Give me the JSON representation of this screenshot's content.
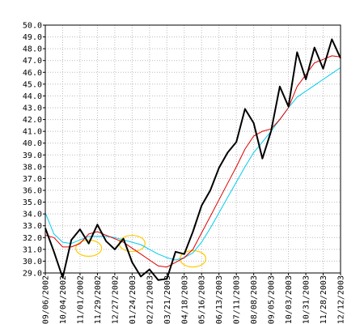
{
  "chart_data": {
    "type": "line",
    "title": "",
    "xlabel": "",
    "ylabel": "",
    "ylim": [
      29.0,
      50.0
    ],
    "y_ticks": [
      "29.0",
      "30.0",
      "31.0",
      "32.0",
      "33.0",
      "34.0",
      "35.0",
      "36.0",
      "37.0",
      "38.0",
      "39.0",
      "40.0",
      "41.0",
      "42.0",
      "43.0",
      "44.0",
      "45.0",
      "46.0",
      "47.0",
      "48.0",
      "49.0",
      "50.0"
    ],
    "x_ticks": [
      "09/06/2002",
      "10/04/2002",
      "11/01/2002",
      "11/29/2002",
      "12/27/2002",
      "01/24/2003",
      "02/21/2003",
      "03/21/2003",
      "04/18/2003",
      "05/16/2003",
      "06/13/2003",
      "07/11/2003",
      "08/08/2003",
      "09/05/2003",
      "10/03/2003",
      "10/31/2003",
      "11/28/2003",
      "12/12/2003"
    ],
    "grid": true,
    "legend": "none",
    "series": [
      {
        "color": "#000000",
        "values": [
          32.8,
          30.8,
          28.6,
          31.8,
          32.7,
          31.5,
          33.1,
          31.7,
          31.0,
          31.9,
          29.9,
          28.7,
          29.3,
          28.4,
          28.5,
          30.8,
          30.6,
          32.5,
          34.7,
          36.0,
          37.9,
          39.2,
          40.1,
          42.9,
          41.7,
          38.7,
          41.0,
          44.8,
          43.1,
          47.7,
          45.4,
          48.1,
          46.3,
          48.8,
          47.2
        ]
      },
      {
        "color": "#dd0000",
        "values": [
          32.2,
          32.0,
          31.2,
          31.2,
          31.5,
          32.3,
          32.5,
          32.2,
          31.9,
          31.6,
          31.1,
          30.6,
          30.1,
          29.6,
          29.5,
          29.9,
          30.3,
          31.0,
          32.4,
          33.8,
          35.2,
          36.6,
          38.0,
          39.5,
          40.6,
          41.0,
          41.2,
          42.0,
          43.0,
          44.8,
          45.8,
          46.8,
          47.1,
          47.4,
          47.3
        ]
      },
      {
        "color": "#00ccee",
        "values": [
          34.1,
          32.3,
          31.6,
          31.5,
          31.8,
          32.1,
          32.1,
          32.1,
          32.0,
          31.8,
          31.6,
          31.4,
          31.0,
          30.6,
          30.3,
          30.1,
          30.3,
          30.7,
          31.6,
          32.8,
          34.1,
          35.4,
          36.7,
          38.0,
          39.2,
          40.1,
          41.0,
          42.0,
          43.0,
          43.9,
          44.4,
          44.9,
          45.4,
          45.9,
          46.4
        ]
      }
    ],
    "annotations": [
      {
        "type": "ellipse",
        "color": "#ffcc00",
        "x_index": 5,
        "y": 31.1
      },
      {
        "type": "ellipse",
        "color": "#ffcc00",
        "x_index": 10,
        "y": 31.5
      },
      {
        "type": "ellipse",
        "color": "#ffcc00",
        "x_index": 17,
        "y": 30.2
      }
    ]
  }
}
